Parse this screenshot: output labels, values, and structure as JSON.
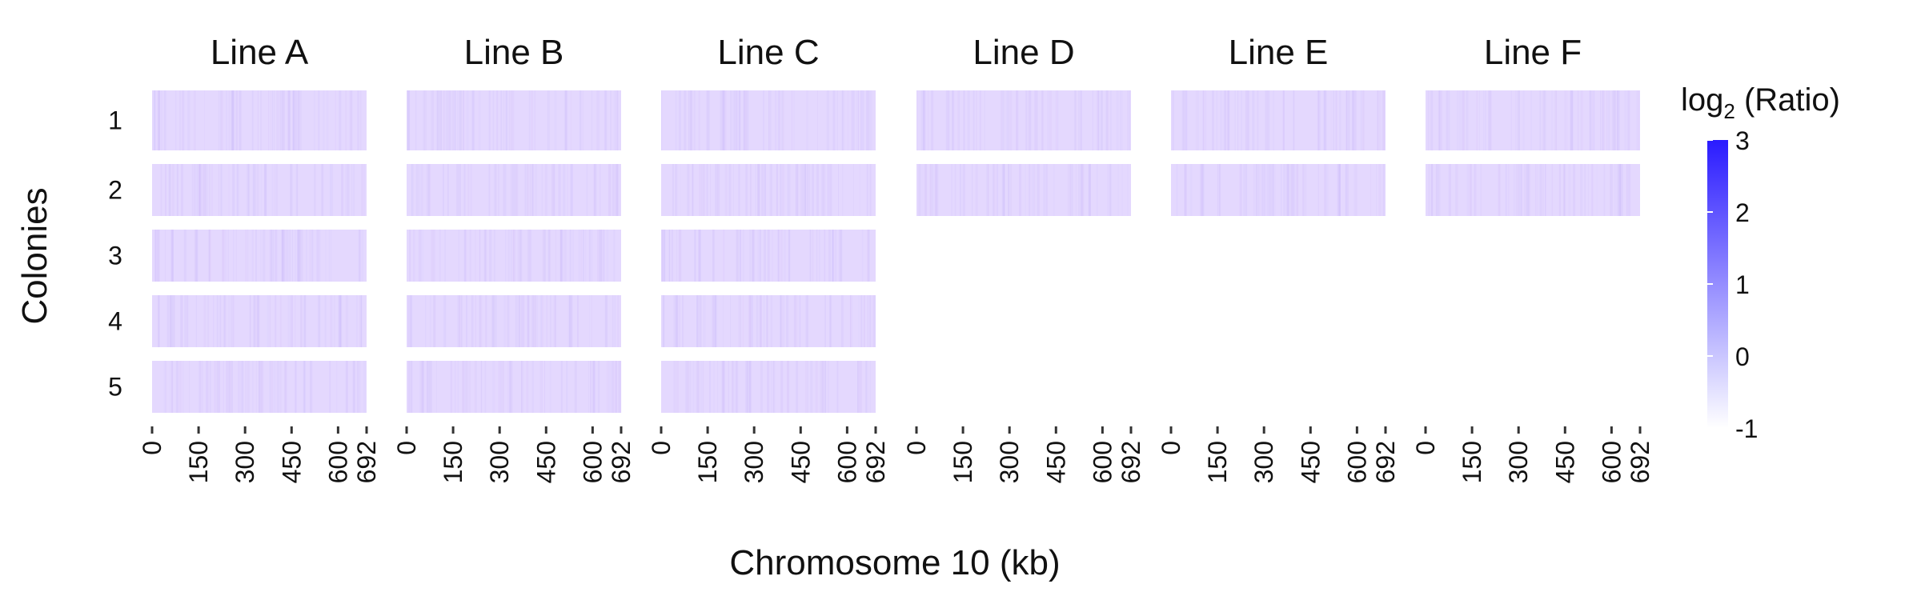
{
  "chart_data": {
    "type": "heatmap",
    "panels": [
      {
        "label": "Line A",
        "colonies": [
          1,
          2,
          3,
          4,
          5
        ]
      },
      {
        "label": "Line B",
        "colonies": [
          1,
          2,
          3,
          4,
          5
        ]
      },
      {
        "label": "Line C",
        "colonies": [
          1,
          2,
          3,
          4,
          5
        ]
      },
      {
        "label": "Line D",
        "colonies": [
          1,
          2
        ]
      },
      {
        "label": "Line E",
        "colonies": [
          1,
          2
        ]
      },
      {
        "label": "Line F",
        "colonies": [
          1,
          2
        ]
      }
    ],
    "rows": [
      "1",
      "2",
      "3",
      "4",
      "5"
    ],
    "xlabel": "Chromosome 10 (kb)",
    "ylabel": "Colonies",
    "x_ticks": [
      "0",
      "150",
      "300",
      "450",
      "600",
      "692"
    ],
    "x_tick_values": [
      0,
      150,
      300,
      450,
      600,
      692
    ],
    "xlim": [
      0,
      692
    ],
    "legend": {
      "title_base": "log",
      "title_sub": "2",
      "title_rest": " (Ratio)",
      "ticks": [
        "3",
        "2",
        "1",
        "0",
        "-1"
      ],
      "tick_values": [
        3,
        2,
        1,
        0,
        -1
      ],
      "range": [
        -1,
        3
      ],
      "low_color": "#ffffff",
      "high_color": "#2a1bff",
      "placement": "right"
    },
    "typical_value": 0,
    "cell_base_color": "#e4d8fe"
  }
}
